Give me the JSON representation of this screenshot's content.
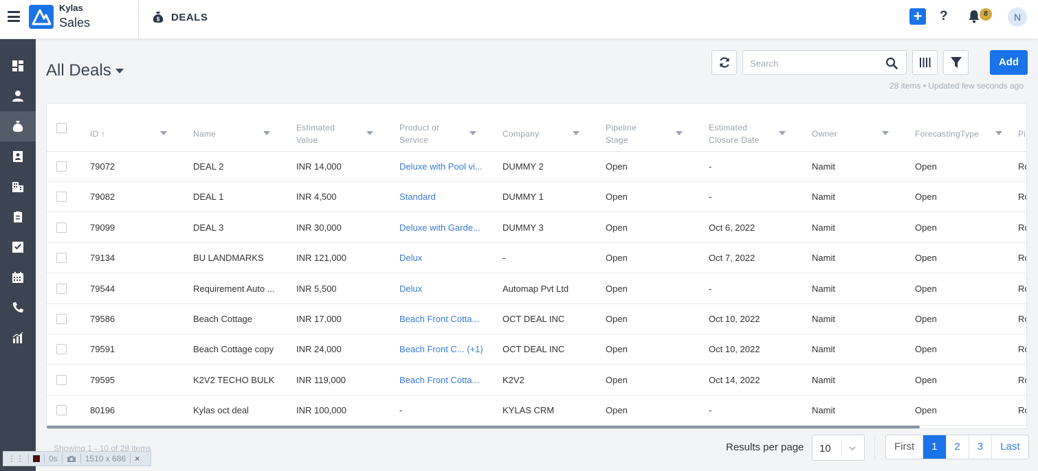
{
  "app": {
    "brand_top": "Kylas",
    "brand_bottom": "Sales",
    "module_title": "DEALS",
    "notification_count": "8",
    "avatar_initial": "N",
    "accent_color": "#1a73e8"
  },
  "toolbar": {
    "page_title": "All Deals",
    "search_placeholder": "Search",
    "add_label": "Add",
    "meta": "28 items • Updated few seconds ago"
  },
  "table": {
    "columns": [
      {
        "line1": "ID",
        "line2": ""
      },
      {
        "line1": "Name",
        "line2": ""
      },
      {
        "line1": "Estimated",
        "line2": "Value"
      },
      {
        "line1": "Product or",
        "line2": "Service"
      },
      {
        "line1": "Company",
        "line2": ""
      },
      {
        "line1": "Pipeline",
        "line2": "Stage"
      },
      {
        "line1": "Estimated",
        "line2": "Closure Date"
      },
      {
        "line1": "Owner",
        "line2": ""
      },
      {
        "line1": "ForecastingType",
        "line2": ""
      },
      {
        "line1": "Pi",
        "line2": ""
      }
    ],
    "rows": [
      {
        "id": "79072",
        "name": "DEAL 2",
        "value": "INR 14,000",
        "product": "Deluxe with Pool vi...",
        "company": "DUMMY 2",
        "stage": "Open",
        "closure": "-",
        "owner": "Namit",
        "forecast": "Open",
        "pi": "Ro"
      },
      {
        "id": "79082",
        "name": "DEAL 1",
        "value": "INR 4,500",
        "product": "Standard",
        "company": "DUMMY 1",
        "stage": "Open",
        "closure": "-",
        "owner": "Namit",
        "forecast": "Open",
        "pi": "Ro"
      },
      {
        "id": "79099",
        "name": "DEAL 3",
        "value": "INR 30,000",
        "product": "Deluxe with Garde...",
        "company": "DUMMY 3",
        "stage": "Open",
        "closure": "Oct 6, 2022",
        "owner": "Namit",
        "forecast": "Open",
        "pi": "Ro"
      },
      {
        "id": "79134",
        "name": "BU LANDMARKS",
        "value": "INR 121,000",
        "product": "Delux",
        "company": "-",
        "stage": "Open",
        "closure": "Oct 7, 2022",
        "owner": "Namit",
        "forecast": "Open",
        "pi": "Ro"
      },
      {
        "id": "79544",
        "name": "Requirement Auto ...",
        "value": "INR 5,500",
        "product": "Delux",
        "company": "Automap Pvt Ltd",
        "stage": "Open",
        "closure": "-",
        "owner": "Namit",
        "forecast": "Open",
        "pi": "Ro"
      },
      {
        "id": "79586",
        "name": "Beach Cottage",
        "value": "INR 17,000",
        "product": "Beach Front Cotta...",
        "company": "OCT DEAL INC",
        "stage": "Open",
        "closure": "Oct 10, 2022",
        "owner": "Namit",
        "forecast": "Open",
        "pi": "Ro"
      },
      {
        "id": "79591",
        "name": "Beach Cottage copy",
        "value": "INR 24,000",
        "product": "Beach Front C...  (+1)",
        "company": "OCT DEAL INC",
        "stage": "Open",
        "closure": "Oct 10, 2022",
        "owner": "Namit",
        "forecast": "Open",
        "pi": "Ro"
      },
      {
        "id": "79595",
        "name": "K2V2 TECHO BULK",
        "value": "INR 119,000",
        "product": "Beach Front Cotta...",
        "company": "K2V2",
        "stage": "Open",
        "closure": "Oct 14, 2022",
        "owner": "Namit",
        "forecast": "Open",
        "pi": "Ro"
      },
      {
        "id": "80196",
        "name": "Kylas oct deal",
        "value": "INR 100,000",
        "product": "-",
        "company": "KYLAS CRM",
        "stage": "Open",
        "closure": "-",
        "owner": "Namit",
        "forecast": "Open",
        "pi": "Ro"
      }
    ]
  },
  "footer": {
    "showing": "Showing 1 - 10 of 28 items",
    "rpp_label": "Results per page",
    "rpp_value": "10",
    "pages": [
      "First",
      "1",
      "2",
      "3",
      "Last"
    ]
  },
  "devbar": {
    "time": "0s",
    "size": "1510 x 686",
    "close": "×"
  }
}
